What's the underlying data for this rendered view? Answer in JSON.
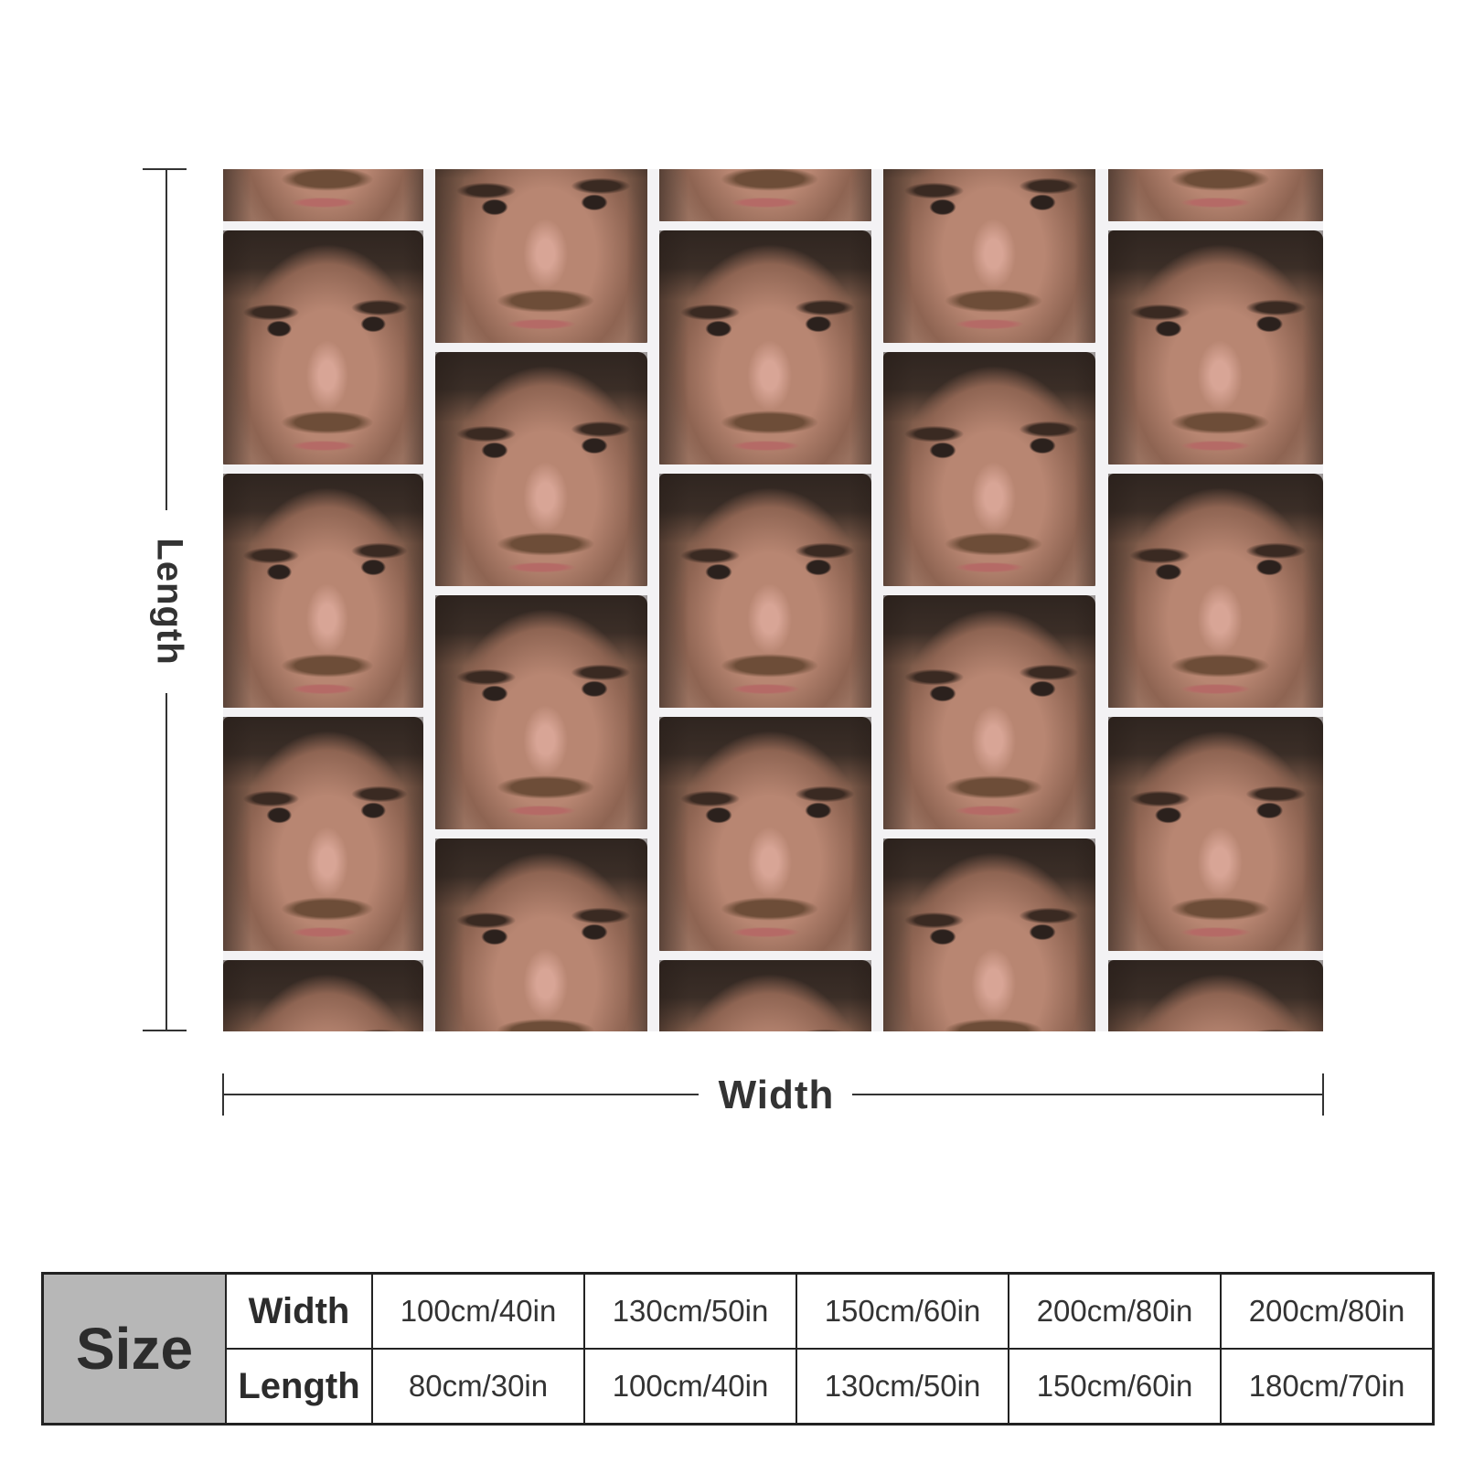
{
  "diagram": {
    "length_label": "Length",
    "width_label": "Width"
  },
  "size_table": {
    "header": "Size",
    "rows": [
      {
        "label": "Width",
        "values": [
          "100cm/40in",
          "130cm/50in",
          "150cm/60in",
          "200cm/80in",
          "200cm/80in"
        ]
      },
      {
        "label": "Length",
        "values": [
          "80cm/30in",
          "100cm/40in",
          "130cm/50in",
          "150cm/60in",
          "180cm/70in"
        ]
      }
    ]
  },
  "colors": {
    "line": "#333333",
    "size_cell": "#b7b7b7",
    "pattern_background": "#f3f2f4"
  }
}
